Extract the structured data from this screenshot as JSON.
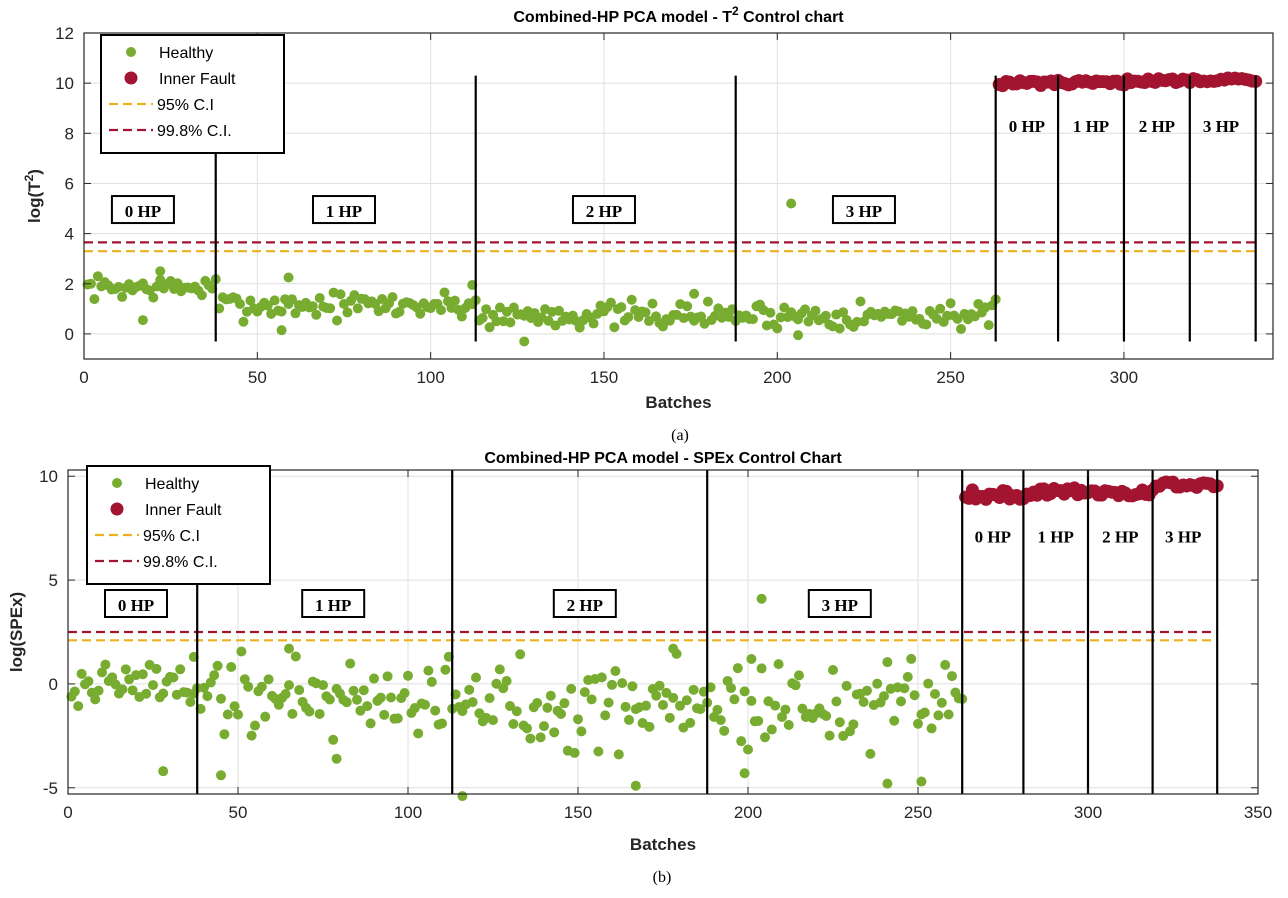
{
  "chart_data": [
    {
      "type": "scatter",
      "panel_caption": "(a)",
      "title_prefix": "Combined-HP PCA model - T",
      "title_sup": "2",
      "title_suffix": " Control chart",
      "xlabel": "Batches",
      "ylabel_prefix": "log(T",
      "ylabel_sup": "2",
      "ylabel_suffix": ")",
      "xlim": [
        0,
        343
      ],
      "ylim": [
        -1,
        12
      ],
      "xticks": [
        0,
        50,
        100,
        150,
        200,
        250,
        300
      ],
      "yticks": [
        0,
        2,
        4,
        6,
        8,
        10,
        12
      ],
      "grid": true,
      "legend_position": "top-left",
      "legend": [
        "Healthy",
        "Inner Fault",
        "95% C.I",
        "99.8% C.I."
      ],
      "colors": {
        "healthy": "#77ac30",
        "fault": "#a2142f",
        "ci95": "#edb120",
        "ci998": "#a2142f"
      },
      "ci95": 3.3,
      "ci998": 3.65,
      "ci_xrange": [
        0,
        338
      ],
      "boundaries": [
        {
          "x": 38,
          "ymin": -0.3,
          "ymax": 7.3
        },
        {
          "x": 113,
          "ymin": -0.3,
          "ymax": 10.3
        },
        {
          "x": 188,
          "ymin": -0.3,
          "ymax": 10.3
        },
        {
          "x": 263,
          "ymin": -0.3,
          "ymax": 10.3
        },
        {
          "x": 281,
          "ymin": -0.3,
          "ymax": 10.3
        },
        {
          "x": 300,
          "ymin": -0.3,
          "ymax": 10.3
        },
        {
          "x": 319,
          "ymin": -0.3,
          "ymax": 10.3
        },
        {
          "x": 338,
          "ymin": -0.3,
          "ymax": 10.3
        }
      ],
      "annotations": [
        {
          "text": "0 HP",
          "x": 17,
          "y": 4.9,
          "box": true
        },
        {
          "text": "1 HP",
          "x": 75,
          "y": 4.9,
          "box": true
        },
        {
          "text": "2 HP",
          "x": 150,
          "y": 4.9,
          "box": true
        },
        {
          "text": "3 HP",
          "x": 225,
          "y": 4.9,
          "box": true
        },
        {
          "text": "0 HP",
          "x": 272,
          "y": 8.3,
          "box": false
        },
        {
          "text": "1 HP",
          "x": 290.5,
          "y": 8.3,
          "box": false
        },
        {
          "text": "2 HP",
          "x": 309.5,
          "y": 8.3,
          "box": false
        },
        {
          "text": "3 HP",
          "x": 328,
          "y": 8.3,
          "box": false
        }
      ],
      "healthy_seed": 7,
      "healthy_segments": [
        {
          "from": 1,
          "to": 38,
          "mean": 1.85,
          "spread": 0.35
        },
        {
          "from": 39,
          "to": 113,
          "mean": 1.15,
          "spread": 0.4
        },
        {
          "from": 114,
          "to": 188,
          "mean": 0.75,
          "spread": 0.4
        },
        {
          "from": 189,
          "to": 263,
          "mean": 0.75,
          "spread": 0.4
        }
      ],
      "healthy_extra": [
        {
          "x": 17,
          "y": 0.55
        },
        {
          "x": 57,
          "y": 0.15
        },
        {
          "x": 127,
          "y": -0.3
        },
        {
          "x": 204,
          "y": 5.2
        },
        {
          "x": 112,
          "y": 1.95
        },
        {
          "x": 22,
          "y": 2.5
        },
        {
          "x": 59,
          "y": 2.25
        },
        {
          "x": 176,
          "y": 1.6
        },
        {
          "x": 206,
          "y": -0.05
        }
      ],
      "fault_segments": [
        {
          "from": 264,
          "to": 281,
          "mean": 10.0,
          "spread": 0.12
        },
        {
          "from": 282,
          "to": 300,
          "mean": 10.0,
          "spread": 0.1
        },
        {
          "from": 301,
          "to": 319,
          "mean": 10.1,
          "spread": 0.08
        },
        {
          "from": 320,
          "to": 338,
          "mean": 10.15,
          "spread": 0.1
        }
      ]
    },
    {
      "type": "scatter",
      "panel_caption": "(b)",
      "title_prefix": "Combined-HP PCA model - SPEx Control Chart",
      "title_sup": "",
      "title_suffix": "",
      "xlabel": "Batches",
      "ylabel_prefix": "log(SPEx)",
      "ylabel_sup": "",
      "ylabel_suffix": "",
      "xlim": [
        0,
        350
      ],
      "ylim": [
        -5.3,
        10.3
      ],
      "xticks": [
        0,
        50,
        100,
        150,
        200,
        250,
        300,
        350
      ],
      "yticks": [
        -5,
        0,
        5,
        10
      ],
      "grid": true,
      "legend_position": "top-left",
      "legend": [
        "Healthy",
        "Inner Fault",
        "95% C.I",
        "99.8% C.I."
      ],
      "colors": {
        "healthy": "#77ac30",
        "fault": "#a2142f",
        "ci95": "#edb120",
        "ci998": "#a2142f"
      },
      "ci95": 2.1,
      "ci998": 2.5,
      "ci_xrange": [
        0,
        338
      ],
      "boundaries": [
        {
          "x": 38,
          "ymin": -5.3,
          "ymax": 5.1
        },
        {
          "x": 113,
          "ymin": -5.3,
          "ymax": 10.3
        },
        {
          "x": 188,
          "ymin": -5.3,
          "ymax": 10.3
        },
        {
          "x": 263,
          "ymin": -5.3,
          "ymax": 10.3
        },
        {
          "x": 281,
          "ymin": -5.3,
          "ymax": 10.3
        },
        {
          "x": 300,
          "ymin": -5.3,
          "ymax": 10.3
        },
        {
          "x": 319,
          "ymin": -5.3,
          "ymax": 10.3
        },
        {
          "x": 338,
          "ymin": -5.3,
          "ymax": 10.3
        }
      ],
      "annotations": [
        {
          "text": "0 HP",
          "x": 20,
          "y": 3.8,
          "box": true
        },
        {
          "text": "1 HP",
          "x": 78,
          "y": 3.8,
          "box": true
        },
        {
          "text": "2 HP",
          "x": 152,
          "y": 3.8,
          "box": true
        },
        {
          "text": "3 HP",
          "x": 227,
          "y": 3.8,
          "box": true
        },
        {
          "text": "0 HP",
          "x": 272,
          "y": 7.1,
          "box": false
        },
        {
          "text": "1 HP",
          "x": 290.5,
          "y": 7.1,
          "box": false
        },
        {
          "text": "2 HP",
          "x": 309.5,
          "y": 7.1,
          "box": false
        },
        {
          "text": "3 HP",
          "x": 328,
          "y": 7.1,
          "box": false
        }
      ],
      "healthy_seed": 19,
      "healthy_segments": [
        {
          "from": 1,
          "to": 38,
          "mean": 0.0,
          "spread": 1.1
        },
        {
          "from": 39,
          "to": 113,
          "mean": -0.6,
          "spread": 1.5
        },
        {
          "from": 114,
          "to": 188,
          "mean": -0.9,
          "spread": 1.7
        },
        {
          "from": 189,
          "to": 263,
          "mean": -1.0,
          "spread": 1.6
        }
      ],
      "healthy_extra": [
        {
          "x": 28,
          "y": -4.2
        },
        {
          "x": 45,
          "y": -4.4
        },
        {
          "x": 79,
          "y": -3.6
        },
        {
          "x": 116,
          "y": -5.4
        },
        {
          "x": 167,
          "y": -4.9
        },
        {
          "x": 199,
          "y": -4.3
        },
        {
          "x": 204,
          "y": 4.1
        },
        {
          "x": 241,
          "y": -4.8
        },
        {
          "x": 251,
          "y": -4.7
        },
        {
          "x": 37,
          "y": 1.3
        },
        {
          "x": 65,
          "y": 1.7
        },
        {
          "x": 178,
          "y": 1.7
        },
        {
          "x": 201,
          "y": 1.2
        }
      ],
      "fault_segments": [
        {
          "from": 264,
          "to": 281,
          "mean": 9.1,
          "spread": 0.25
        },
        {
          "from": 282,
          "to": 300,
          "mean": 9.25,
          "spread": 0.2
        },
        {
          "from": 301,
          "to": 319,
          "mean": 9.2,
          "spread": 0.15
        },
        {
          "from": 320,
          "to": 338,
          "mean": 9.6,
          "spread": 0.15
        }
      ]
    }
  ]
}
